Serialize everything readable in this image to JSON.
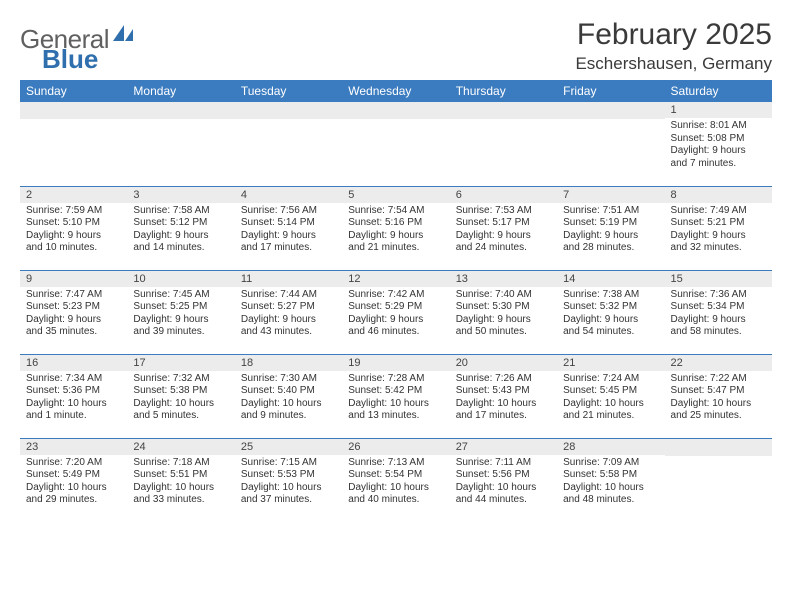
{
  "logo": {
    "text1": "General",
    "text2": "Blue"
  },
  "title": "February 2025",
  "location": "Eschershausen, Germany",
  "header_bg": "#3b7bbf",
  "daynum_bg": "#ececec",
  "weekdays": [
    "Sunday",
    "Monday",
    "Tuesday",
    "Wednesday",
    "Thursday",
    "Friday",
    "Saturday"
  ],
  "weeks": [
    [
      {
        "n": "",
        "lines": [
          "",
          "",
          "",
          ""
        ]
      },
      {
        "n": "",
        "lines": [
          "",
          "",
          "",
          ""
        ]
      },
      {
        "n": "",
        "lines": [
          "",
          "",
          "",
          ""
        ]
      },
      {
        "n": "",
        "lines": [
          "",
          "",
          "",
          ""
        ]
      },
      {
        "n": "",
        "lines": [
          "",
          "",
          "",
          ""
        ]
      },
      {
        "n": "",
        "lines": [
          "",
          "",
          "",
          ""
        ]
      },
      {
        "n": "1",
        "lines": [
          "Sunrise: 8:01 AM",
          "Sunset: 5:08 PM",
          "Daylight: 9 hours",
          "and 7 minutes."
        ]
      }
    ],
    [
      {
        "n": "2",
        "lines": [
          "Sunrise: 7:59 AM",
          "Sunset: 5:10 PM",
          "Daylight: 9 hours",
          "and 10 minutes."
        ]
      },
      {
        "n": "3",
        "lines": [
          "Sunrise: 7:58 AM",
          "Sunset: 5:12 PM",
          "Daylight: 9 hours",
          "and 14 minutes."
        ]
      },
      {
        "n": "4",
        "lines": [
          "Sunrise: 7:56 AM",
          "Sunset: 5:14 PM",
          "Daylight: 9 hours",
          "and 17 minutes."
        ]
      },
      {
        "n": "5",
        "lines": [
          "Sunrise: 7:54 AM",
          "Sunset: 5:16 PM",
          "Daylight: 9 hours",
          "and 21 minutes."
        ]
      },
      {
        "n": "6",
        "lines": [
          "Sunrise: 7:53 AM",
          "Sunset: 5:17 PM",
          "Daylight: 9 hours",
          "and 24 minutes."
        ]
      },
      {
        "n": "7",
        "lines": [
          "Sunrise: 7:51 AM",
          "Sunset: 5:19 PM",
          "Daylight: 9 hours",
          "and 28 minutes."
        ]
      },
      {
        "n": "8",
        "lines": [
          "Sunrise: 7:49 AM",
          "Sunset: 5:21 PM",
          "Daylight: 9 hours",
          "and 32 minutes."
        ]
      }
    ],
    [
      {
        "n": "9",
        "lines": [
          "Sunrise: 7:47 AM",
          "Sunset: 5:23 PM",
          "Daylight: 9 hours",
          "and 35 minutes."
        ]
      },
      {
        "n": "10",
        "lines": [
          "Sunrise: 7:45 AM",
          "Sunset: 5:25 PM",
          "Daylight: 9 hours",
          "and 39 minutes."
        ]
      },
      {
        "n": "11",
        "lines": [
          "Sunrise: 7:44 AM",
          "Sunset: 5:27 PM",
          "Daylight: 9 hours",
          "and 43 minutes."
        ]
      },
      {
        "n": "12",
        "lines": [
          "Sunrise: 7:42 AM",
          "Sunset: 5:29 PM",
          "Daylight: 9 hours",
          "and 46 minutes."
        ]
      },
      {
        "n": "13",
        "lines": [
          "Sunrise: 7:40 AM",
          "Sunset: 5:30 PM",
          "Daylight: 9 hours",
          "and 50 minutes."
        ]
      },
      {
        "n": "14",
        "lines": [
          "Sunrise: 7:38 AM",
          "Sunset: 5:32 PM",
          "Daylight: 9 hours",
          "and 54 minutes."
        ]
      },
      {
        "n": "15",
        "lines": [
          "Sunrise: 7:36 AM",
          "Sunset: 5:34 PM",
          "Daylight: 9 hours",
          "and 58 minutes."
        ]
      }
    ],
    [
      {
        "n": "16",
        "lines": [
          "Sunrise: 7:34 AM",
          "Sunset: 5:36 PM",
          "Daylight: 10 hours",
          "and 1 minute."
        ]
      },
      {
        "n": "17",
        "lines": [
          "Sunrise: 7:32 AM",
          "Sunset: 5:38 PM",
          "Daylight: 10 hours",
          "and 5 minutes."
        ]
      },
      {
        "n": "18",
        "lines": [
          "Sunrise: 7:30 AM",
          "Sunset: 5:40 PM",
          "Daylight: 10 hours",
          "and 9 minutes."
        ]
      },
      {
        "n": "19",
        "lines": [
          "Sunrise: 7:28 AM",
          "Sunset: 5:42 PM",
          "Daylight: 10 hours",
          "and 13 minutes."
        ]
      },
      {
        "n": "20",
        "lines": [
          "Sunrise: 7:26 AM",
          "Sunset: 5:43 PM",
          "Daylight: 10 hours",
          "and 17 minutes."
        ]
      },
      {
        "n": "21",
        "lines": [
          "Sunrise: 7:24 AM",
          "Sunset: 5:45 PM",
          "Daylight: 10 hours",
          "and 21 minutes."
        ]
      },
      {
        "n": "22",
        "lines": [
          "Sunrise: 7:22 AM",
          "Sunset: 5:47 PM",
          "Daylight: 10 hours",
          "and 25 minutes."
        ]
      }
    ],
    [
      {
        "n": "23",
        "lines": [
          "Sunrise: 7:20 AM",
          "Sunset: 5:49 PM",
          "Daylight: 10 hours",
          "and 29 minutes."
        ]
      },
      {
        "n": "24",
        "lines": [
          "Sunrise: 7:18 AM",
          "Sunset: 5:51 PM",
          "Daylight: 10 hours",
          "and 33 minutes."
        ]
      },
      {
        "n": "25",
        "lines": [
          "Sunrise: 7:15 AM",
          "Sunset: 5:53 PM",
          "Daylight: 10 hours",
          "and 37 minutes."
        ]
      },
      {
        "n": "26",
        "lines": [
          "Sunrise: 7:13 AM",
          "Sunset: 5:54 PM",
          "Daylight: 10 hours",
          "and 40 minutes."
        ]
      },
      {
        "n": "27",
        "lines": [
          "Sunrise: 7:11 AM",
          "Sunset: 5:56 PM",
          "Daylight: 10 hours",
          "and 44 minutes."
        ]
      },
      {
        "n": "28",
        "lines": [
          "Sunrise: 7:09 AM",
          "Sunset: 5:58 PM",
          "Daylight: 10 hours",
          "and 48 minutes."
        ]
      },
      {
        "n": "",
        "lines": [
          "",
          "",
          "",
          ""
        ]
      }
    ]
  ]
}
